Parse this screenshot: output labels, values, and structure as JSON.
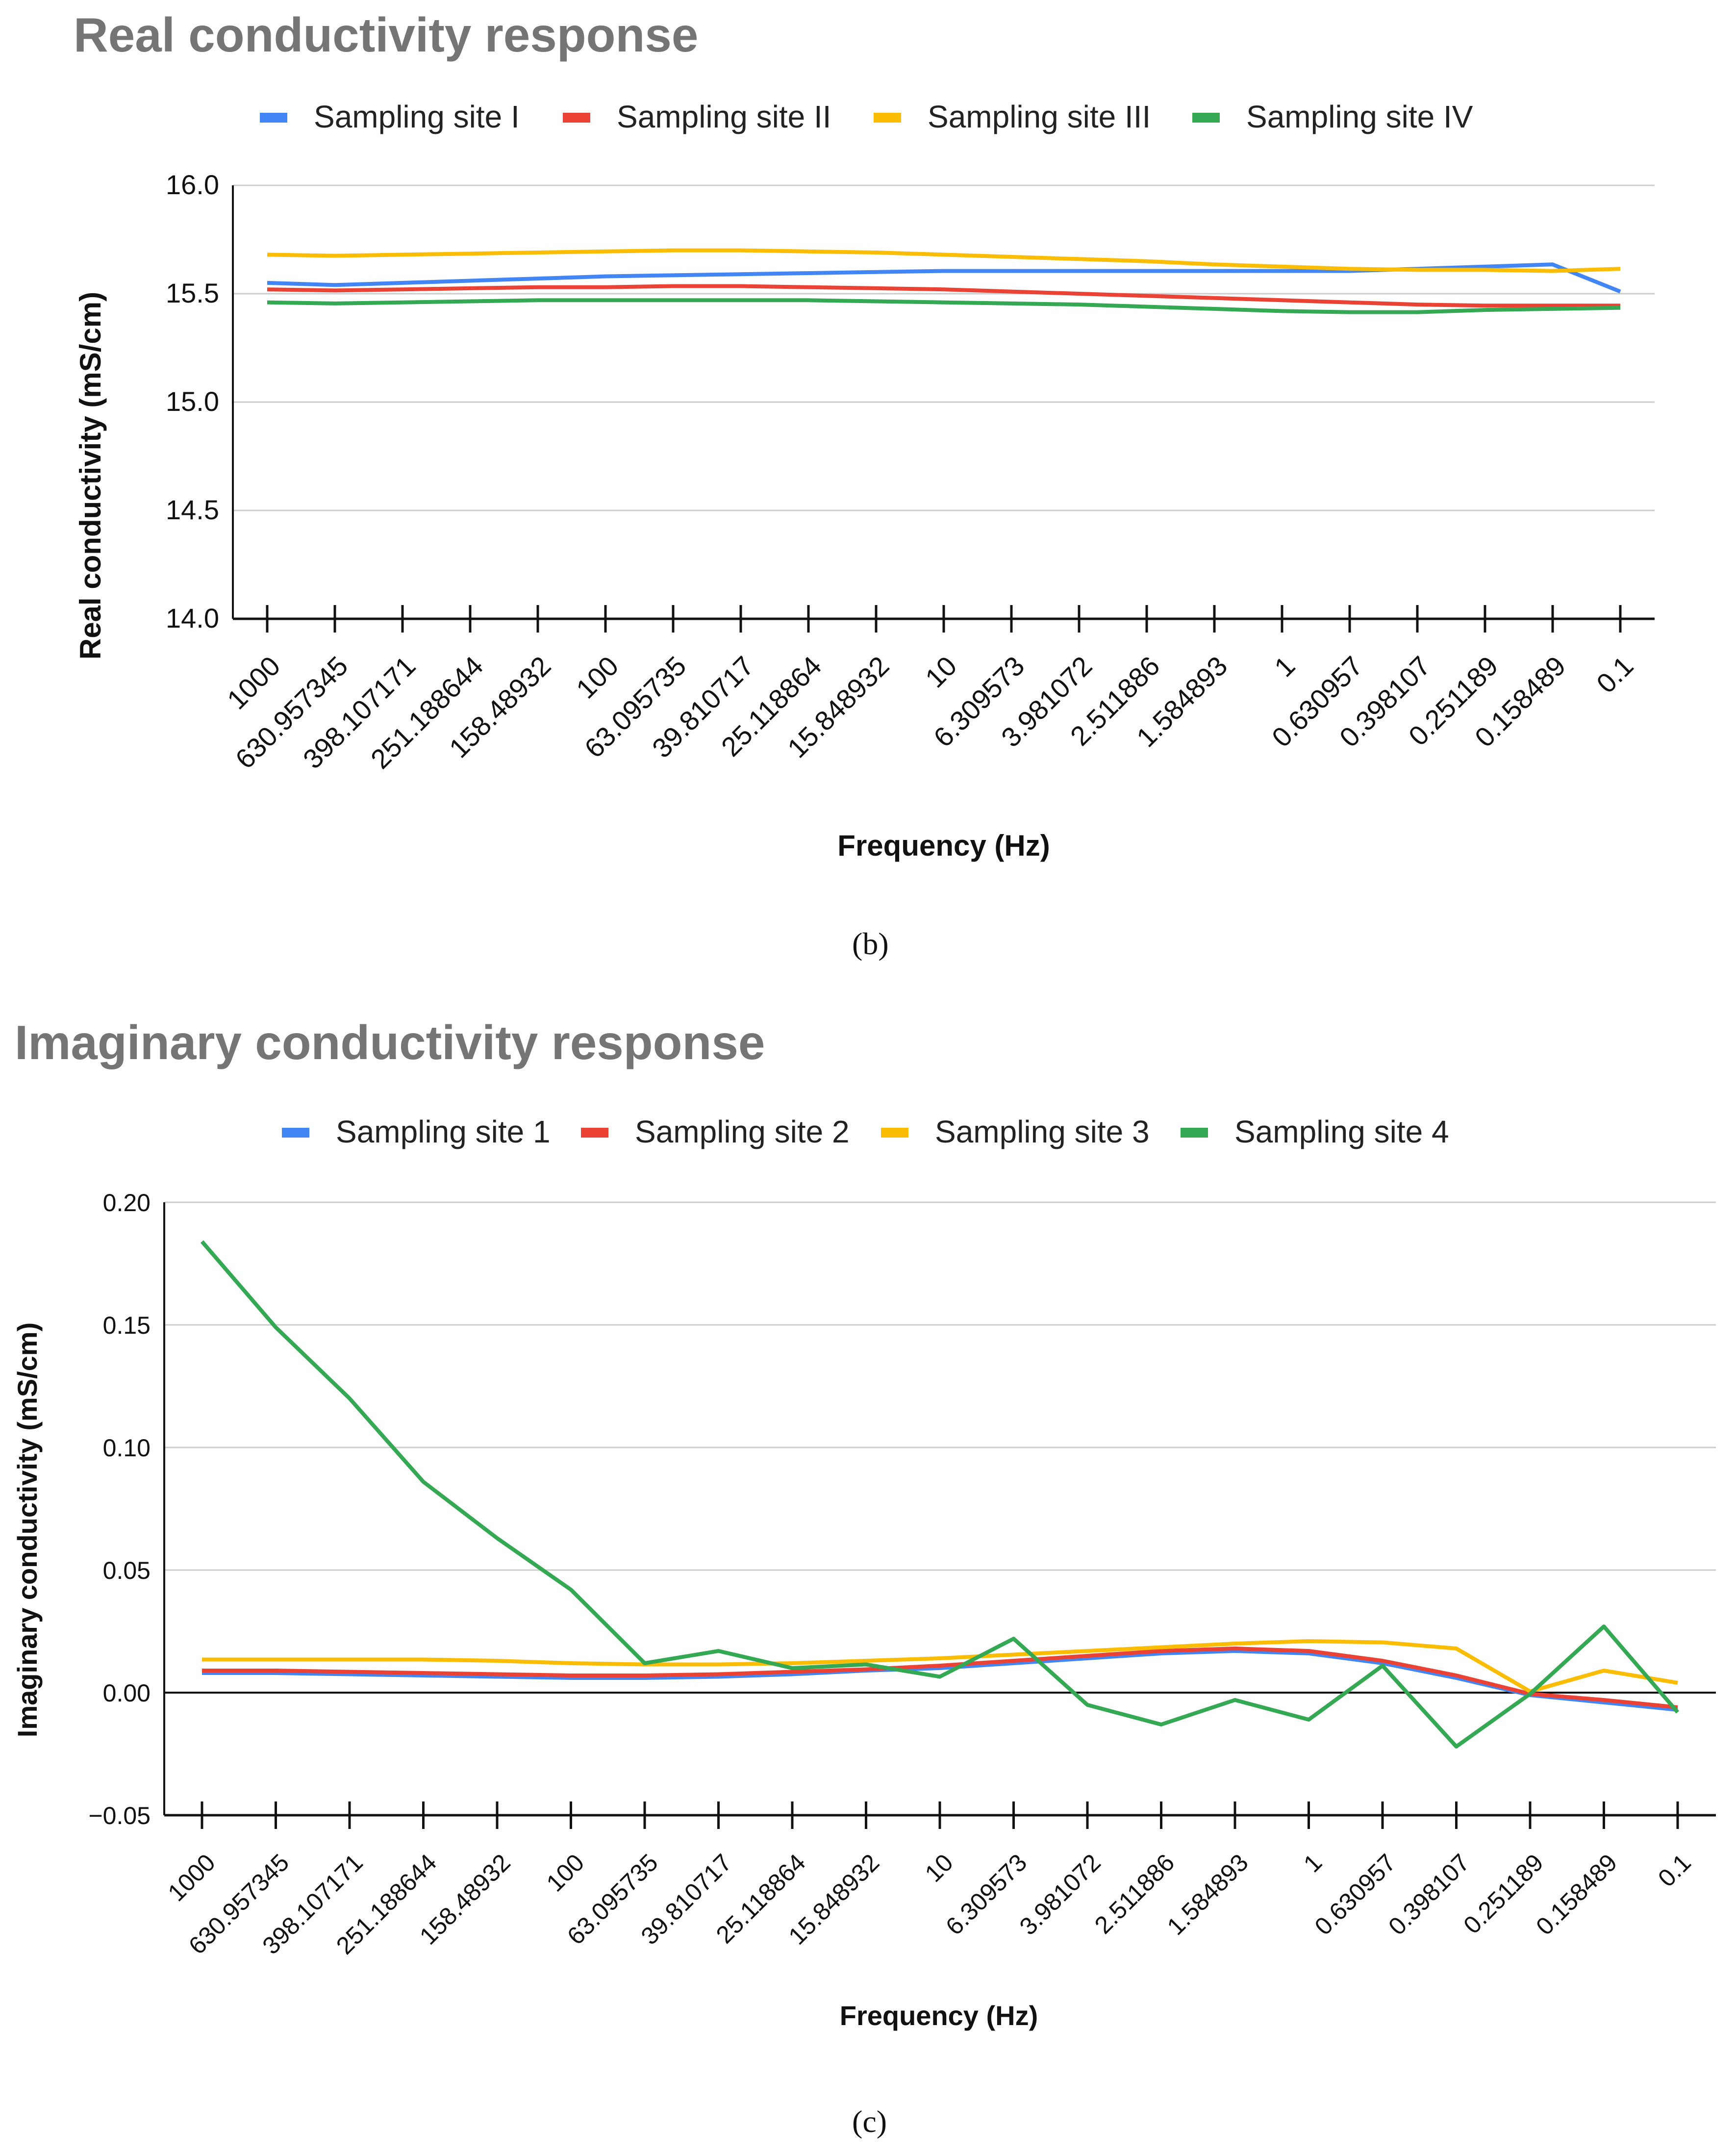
{
  "chart_data": [
    {
      "type": "line",
      "panel": "b",
      "title": "Real conductivity response",
      "xlabel": "Frequency (Hz)",
      "ylabel": "Real conductivity (mS/cm)",
      "ylim": [
        14.0,
        16.0
      ],
      "yticks": [
        "16.0",
        "15.5",
        "15.0",
        "14.5",
        "14.0"
      ],
      "ytick_values": [
        16.0,
        15.5,
        15.0,
        14.5,
        14.0
      ],
      "categories": [
        "1000",
        "630.957345",
        "398.107171",
        "251.188644",
        "158.48932",
        "100",
        "63.095735",
        "39.810717",
        "25.118864",
        "15.848932",
        "10",
        "6.309573",
        "3.981072",
        "2.511886",
        "1.584893",
        "1",
        "0.630957",
        "0.398107",
        "0.251189",
        "0.158489",
        "0.1"
      ],
      "grid": true,
      "legend_position": "top",
      "series": [
        {
          "name": "Sampling site I",
          "color": "#4285F4",
          "values": [
            15.55,
            15.54,
            15.55,
            15.56,
            15.57,
            15.58,
            15.585,
            15.59,
            15.595,
            15.6,
            15.605,
            15.605,
            15.605,
            15.605,
            15.605,
            15.605,
            15.605,
            15.615,
            15.625,
            15.635,
            15.51
          ]
        },
        {
          "name": "Sampling site II",
          "color": "#EA4335",
          "values": [
            15.52,
            15.515,
            15.52,
            15.525,
            15.53,
            15.53,
            15.535,
            15.535,
            15.53,
            15.525,
            15.52,
            15.51,
            15.5,
            15.49,
            15.48,
            15.47,
            15.46,
            15.45,
            15.445,
            15.445,
            15.445
          ]
        },
        {
          "name": "Sampling site III",
          "color": "#FBBC04",
          "values": [
            15.68,
            15.675,
            15.68,
            15.685,
            15.69,
            15.695,
            15.7,
            15.7,
            15.695,
            15.69,
            15.68,
            15.67,
            15.66,
            15.65,
            15.635,
            15.625,
            15.615,
            15.61,
            15.61,
            15.605,
            15.615
          ]
        },
        {
          "name": "Sampling site IV",
          "color": "#34A853",
          "values": [
            15.46,
            15.455,
            15.46,
            15.465,
            15.47,
            15.47,
            15.47,
            15.47,
            15.47,
            15.465,
            15.46,
            15.455,
            15.45,
            15.44,
            15.43,
            15.42,
            15.415,
            15.415,
            15.425,
            15.43,
            15.435
          ]
        }
      ]
    },
    {
      "type": "line",
      "panel": "c",
      "title": "Imaginary conductivity response",
      "xlabel": "Frequency (Hz)",
      "ylabel": "Imaginary conductivity (mS/cm)",
      "ylim": [
        -0.05,
        0.2
      ],
      "yticks": [
        "0.20",
        "0.15",
        "0.10",
        "0.05",
        "0.00",
        "−0.05"
      ],
      "ytick_values": [
        0.2,
        0.15,
        0.1,
        0.05,
        0.0,
        -0.05
      ],
      "categories": [
        "1000",
        "630.957345",
        "398.107171",
        "251.188644",
        "158.48932",
        "100",
        "63.095735",
        "39.810717",
        "25.118864",
        "15.848932",
        "10",
        "6.309573",
        "3.981072",
        "2.511886",
        "1.584893",
        "1",
        "0.630957",
        "0.398107",
        "0.251189",
        "0.158489",
        "0.1"
      ],
      "grid": true,
      "legend_position": "top",
      "series": [
        {
          "name": "Sampling site 1",
          "color": "#4285F4",
          "values": [
            0.008,
            0.008,
            0.0075,
            0.007,
            0.0065,
            0.006,
            0.006,
            0.0065,
            0.0075,
            0.009,
            0.01,
            0.012,
            0.014,
            0.016,
            0.017,
            0.016,
            0.012,
            0.006,
            -0.001,
            -0.004,
            -0.007
          ]
        },
        {
          "name": "Sampling site 2",
          "color": "#EA4335",
          "values": [
            0.009,
            0.009,
            0.0085,
            0.008,
            0.0075,
            0.007,
            0.007,
            0.0075,
            0.0085,
            0.0095,
            0.011,
            0.013,
            0.015,
            0.017,
            0.018,
            0.017,
            0.013,
            0.007,
            -0.0005,
            -0.003,
            -0.006
          ]
        },
        {
          "name": "Sampling site 3",
          "color": "#FBBC04",
          "values": [
            0.0135,
            0.0135,
            0.0135,
            0.0135,
            0.013,
            0.012,
            0.0115,
            0.0115,
            0.012,
            0.013,
            0.014,
            0.0155,
            0.017,
            0.0185,
            0.02,
            0.021,
            0.0205,
            0.018,
            0.0005,
            0.009,
            0.004
          ]
        },
        {
          "name": "Sampling site 4",
          "color": "#34A853",
          "values": [
            0.184,
            0.149,
            0.12,
            0.086,
            0.063,
            0.042,
            0.012,
            0.017,
            0.01,
            0.0115,
            0.0065,
            0.022,
            -0.005,
            -0.013,
            -0.003,
            -0.011,
            0.011,
            -0.022,
            -0.0005,
            0.027,
            -0.008
          ]
        }
      ]
    }
  ],
  "captions": {
    "b": "(b)",
    "c": "(c)"
  }
}
